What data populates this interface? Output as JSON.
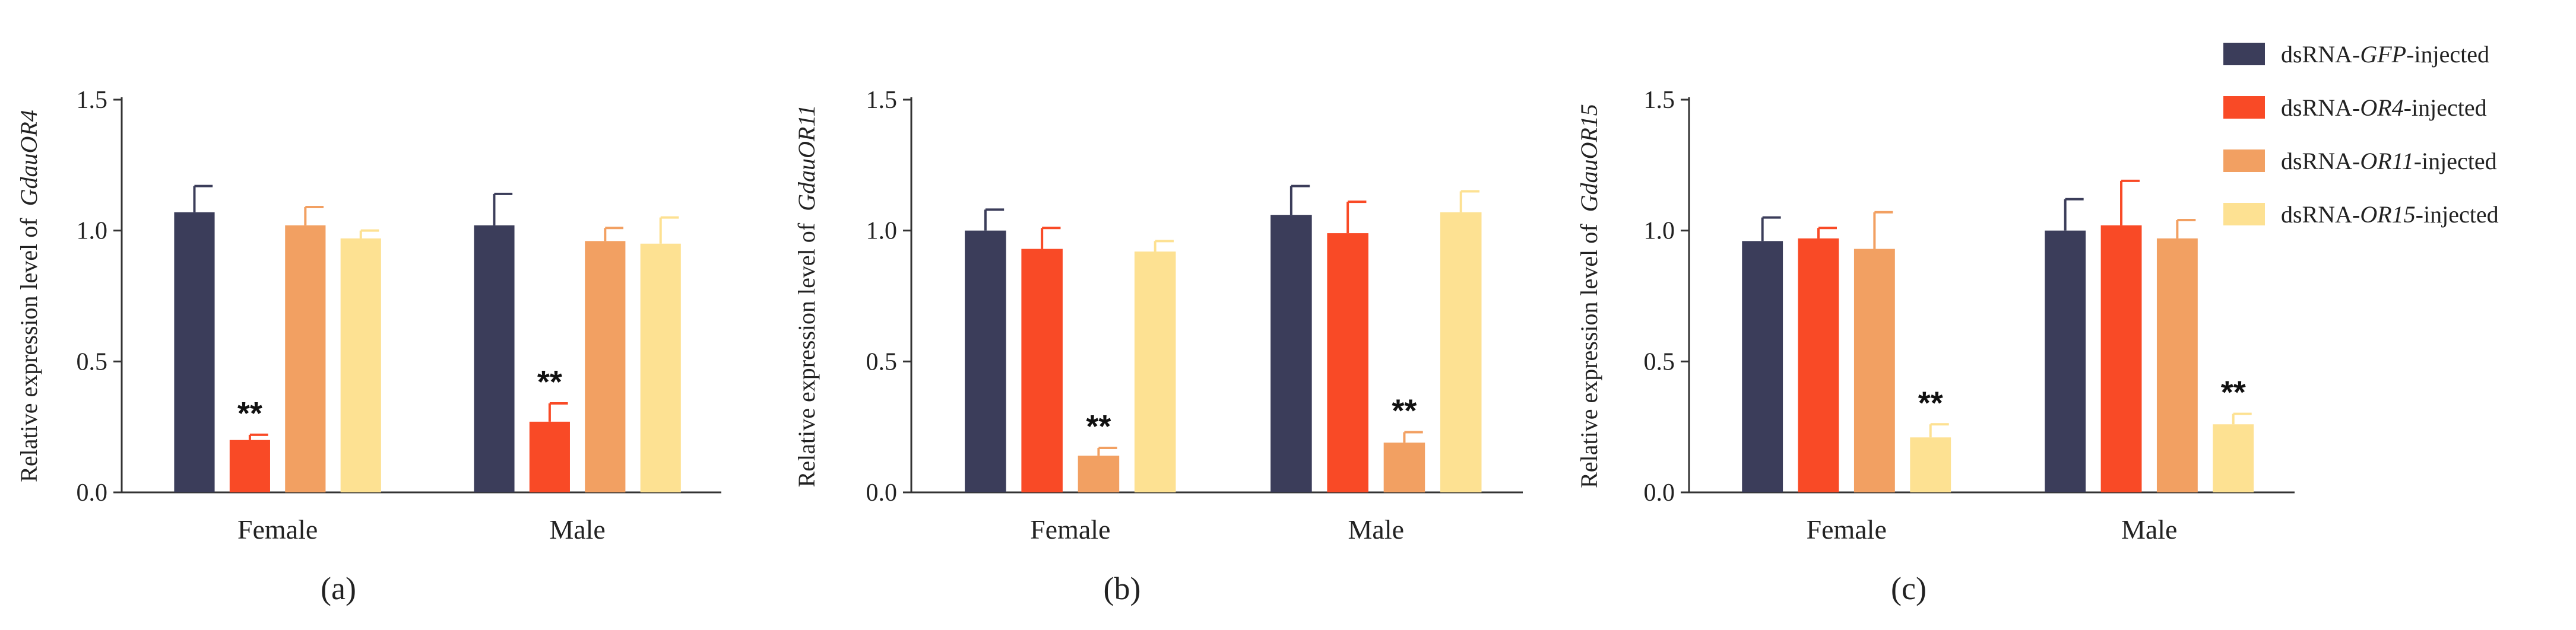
{
  "chart_data": [
    {
      "type": "bar",
      "panel": "(a)",
      "ylabel": "Relative expression level of",
      "ylabel_gene": "GdauOR4",
      "ylim": [
        0,
        1.5
      ],
      "yticks": [
        "0.0",
        "0.5",
        "1.0",
        "1.5"
      ],
      "categories": [
        "Female",
        "Male"
      ],
      "series": [
        {
          "name": "dsRNA-GFP-injected",
          "values": [
            1.07,
            1.02
          ],
          "errors": [
            0.1,
            0.12
          ],
          "sig": [
            "",
            ""
          ]
        },
        {
          "name": "dsRNA-OR4-injected",
          "values": [
            0.2,
            0.27
          ],
          "errors": [
            0.02,
            0.07
          ],
          "sig": [
            "**",
            "**"
          ]
        },
        {
          "name": "dsRNA-OR11-injected",
          "values": [
            1.02,
            0.96
          ],
          "errors": [
            0.07,
            0.05
          ],
          "sig": [
            "",
            ""
          ]
        },
        {
          "name": "dsRNA-OR15-injected",
          "values": [
            0.97,
            0.95
          ],
          "errors": [
            0.03,
            0.1
          ],
          "sig": [
            "",
            ""
          ]
        }
      ]
    },
    {
      "type": "bar",
      "panel": "(b)",
      "ylabel": "Relative expression level of",
      "ylabel_gene": "GdauOR11",
      "ylim": [
        0,
        1.5
      ],
      "yticks": [
        "0.0",
        "0.5",
        "1.0",
        "1.5"
      ],
      "categories": [
        "Female",
        "Male"
      ],
      "series": [
        {
          "name": "dsRNA-GFP-injected",
          "values": [
            1.0,
            1.06
          ],
          "errors": [
            0.08,
            0.11
          ],
          "sig": [
            "",
            ""
          ]
        },
        {
          "name": "dsRNA-OR4-injected",
          "values": [
            0.93,
            0.99
          ],
          "errors": [
            0.08,
            0.12
          ],
          "sig": [
            "",
            ""
          ]
        },
        {
          "name": "dsRNA-OR11-injected",
          "values": [
            0.14,
            0.19
          ],
          "errors": [
            0.03,
            0.04
          ],
          "sig": [
            "**",
            "**"
          ]
        },
        {
          "name": "dsRNA-OR15-injected",
          "values": [
            0.92,
            1.07
          ],
          "errors": [
            0.04,
            0.08
          ],
          "sig": [
            "",
            ""
          ]
        }
      ]
    },
    {
      "type": "bar",
      "panel": "(c)",
      "ylabel": "Relative expression level of",
      "ylabel_gene": "GdauOR15",
      "ylim": [
        0,
        1.5
      ],
      "yticks": [
        "0.0",
        "0.5",
        "1.0",
        "1.5"
      ],
      "categories": [
        "Female",
        "Male"
      ],
      "series": [
        {
          "name": "dsRNA-GFP-injected",
          "values": [
            0.96,
            1.0
          ],
          "errors": [
            0.09,
            0.12
          ],
          "sig": [
            "",
            ""
          ]
        },
        {
          "name": "dsRNA-OR4-injected",
          "values": [
            0.97,
            1.02
          ],
          "errors": [
            0.04,
            0.17
          ],
          "sig": [
            "",
            ""
          ]
        },
        {
          "name": "dsRNA-OR11-injected",
          "values": [
            0.93,
            0.97
          ],
          "errors": [
            0.14,
            0.07
          ],
          "sig": [
            "",
            ""
          ]
        },
        {
          "name": "dsRNA-OR15-injected",
          "values": [
            0.21,
            0.26
          ],
          "errors": [
            0.05,
            0.04
          ],
          "sig": [
            "**",
            "**"
          ]
        }
      ]
    }
  ],
  "legend": {
    "position": "top-right",
    "items": [
      {
        "prefix": "dsRNA-",
        "gene": "GFP",
        "suffix": "-injected",
        "color": "#3b3d5a"
      },
      {
        "prefix": "dsRNA-",
        "gene": "OR4",
        "suffix": "-injected",
        "color": "#f94a26"
      },
      {
        "prefix": "dsRNA-",
        "gene": "OR11",
        "suffix": "-injected",
        "color": "#f2a062"
      },
      {
        "prefix": "dsRNA-",
        "gene": "OR15",
        "suffix": "-injected",
        "color": "#fde192"
      }
    ]
  },
  "colors": {
    "series": [
      "#3b3d5a",
      "#f94a26",
      "#f2a062",
      "#fde192"
    ],
    "axis": "#333333"
  }
}
